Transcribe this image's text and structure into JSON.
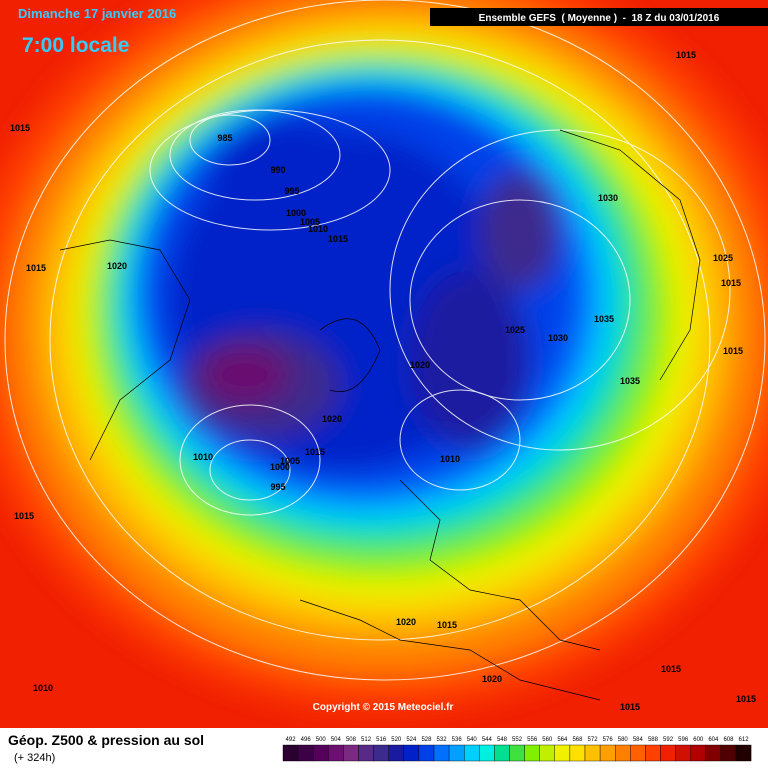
{
  "header": {
    "date": "Dimanche 17 janvier 2016",
    "time": "7:00 locale",
    "model": "Ensemble GEFS  ( Moyenne )  -  18 Z du 03/01/2016"
  },
  "map": {
    "isobar_labels": [
      1015,
      1015,
      985,
      990,
      995,
      1000,
      1005,
      1010,
      1015,
      1030,
      1020,
      1015,
      1025,
      1015,
      1035,
      1025,
      1030,
      1015,
      1020,
      1035,
      1020,
      1010,
      1015,
      1005,
      1000,
      1010,
      995,
      1015,
      1020,
      1015,
      1020,
      1015,
      1010,
      1015,
      1015
    ],
    "copyright": "Copyright © 2015 Meteociel.fr"
  },
  "footer": {
    "title": "Géop. Z500 & pression au sol",
    "lead": "(+ 324h)"
  },
  "scale": {
    "values": [
      492,
      496,
      500,
      504,
      508,
      512,
      516,
      520,
      524,
      528,
      532,
      536,
      540,
      544,
      548,
      552,
      556,
      560,
      564,
      568,
      572,
      576,
      580,
      584,
      588,
      592,
      596,
      600,
      604,
      608,
      612
    ],
    "colors": [
      "#2b0030",
      "#3d0046",
      "#55005a",
      "#6b1070",
      "#7a2a80",
      "#562a86",
      "#3c2a8c",
      "#1a1aa0",
      "#0020c8",
      "#0040e8",
      "#0070ff",
      "#00a0ff",
      "#00d0ff",
      "#00f0e0",
      "#00e090",
      "#40e040",
      "#80f000",
      "#c0f000",
      "#f0f000",
      "#ffe000",
      "#ffc000",
      "#ffa000",
      "#ff8000",
      "#ff6000",
      "#ff4000",
      "#f02000",
      "#d01000",
      "#b00000",
      "#800000",
      "#500000",
      "#200000"
    ]
  }
}
